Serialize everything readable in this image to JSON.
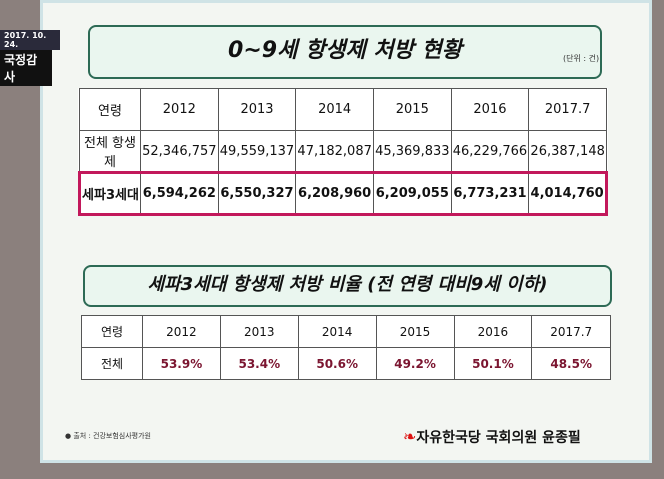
{
  "overlay": {
    "date": "2017. 10. 24.",
    "program": "국정감사"
  },
  "table1": {
    "title": "0~9세 항생제 처방 현황",
    "unit": "(단위 : 건)",
    "headers": [
      "연령",
      "2012",
      "2013",
      "2014",
      "2015",
      "2016",
      "2017.7"
    ],
    "rows": [
      [
        "전체 항생제",
        "52,346,757",
        "49,559,137",
        "47,182,087",
        "45,369,833",
        "46,229,766",
        "26,387,148"
      ],
      [
        "세파3세대",
        "6,594,262",
        "6,550,327",
        "6,208,960",
        "6,209,055",
        "6,773,231",
        "4,014,760"
      ]
    ]
  },
  "table2": {
    "title": "세파3세대 항생제 처방 비율 (전 연령 대비9세 이하)",
    "headers": [
      "연령",
      "2012",
      "2013",
      "2014",
      "2015",
      "2016",
      "2017.7"
    ],
    "rows": [
      [
        "전체",
        "53.9%",
        "53.4%",
        "50.6%",
        "49.2%",
        "50.1%",
        "48.5%"
      ]
    ]
  },
  "source": "● 출처 : 건강보험심사평가원",
  "footer": "자유한국당  국회의원 윤종필"
}
